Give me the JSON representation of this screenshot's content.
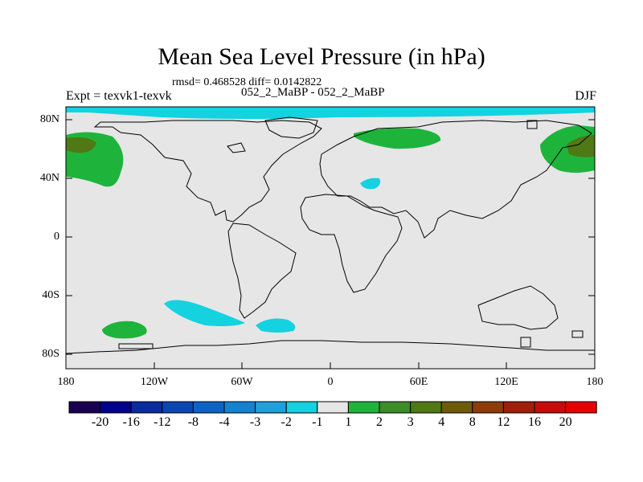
{
  "title": "Mean Sea Level Pressure (in hPa)",
  "stats": "rmsd= 0.468528 diff= 0.0142822",
  "subtitle": "052_2_MaBP - 052_2_MaBP",
  "expt": "Expt = texvk1-texvk",
  "season": "DJF",
  "y_axis": {
    "ticks": [
      "80N",
      "40N",
      "0",
      "40S",
      "80S"
    ]
  },
  "x_axis": {
    "ticks": [
      "180",
      "120W",
      "60W",
      "0",
      "60E",
      "120E",
      "180"
    ]
  },
  "colorbar": {
    "labels": [
      "-20",
      "-16",
      "-12",
      "-8",
      "-4",
      "-3",
      "-2",
      "-1",
      "1",
      "2",
      "3",
      "4",
      "8",
      "12",
      "16",
      "20"
    ],
    "colors": [
      "#1a0050",
      "#00008c",
      "#0a2aa0",
      "#0a46b4",
      "#0a64c8",
      "#1482d2",
      "#1ea0dc",
      "#14d2e0",
      "#e6e6e6",
      "#1eb43c",
      "#3c8c28",
      "#507814",
      "#6e5a0a",
      "#8c3c0a",
      "#a01e0a",
      "#c80a0a",
      "#e60000"
    ]
  },
  "colors": {
    "background": "#e6e6e6",
    "negative_anomaly": "#14d2e0",
    "positive_anomaly": "#1eb43c",
    "strong_positive": "#507814"
  }
}
